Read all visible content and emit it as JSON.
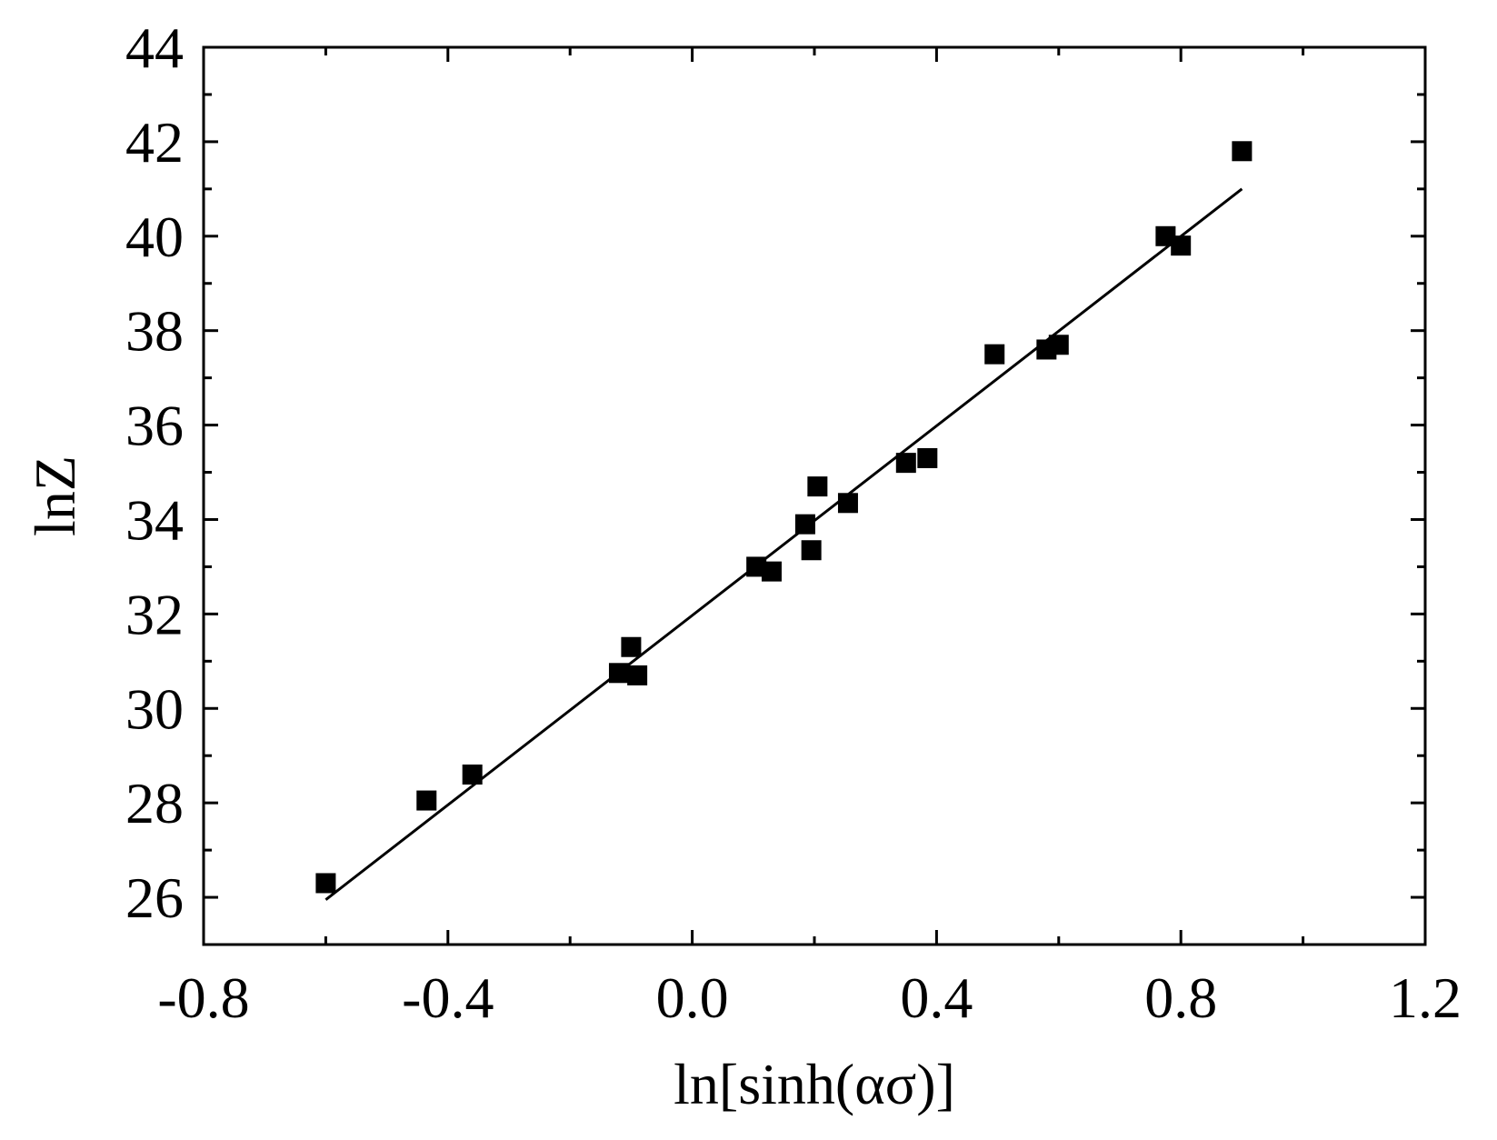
{
  "chart_data": {
    "type": "scatter",
    "title": "",
    "xlabel": "ln[sinh(ασ)]",
    "ylabel": "lnZ",
    "xlim": [
      -0.8,
      1.2
    ],
    "ylim": [
      25,
      44
    ],
    "x_ticks": [
      "-0.8",
      "-0.4",
      "0.0",
      "0.4",
      "0.8",
      "1.2"
    ],
    "y_ticks": [
      "26",
      "28",
      "30",
      "32",
      "34",
      "36",
      "38",
      "40",
      "42",
      "44"
    ],
    "grid": false,
    "legend": "none",
    "marker": "square",
    "color": "#000000",
    "series": [
      {
        "points": [
          {
            "x": -0.6,
            "y": 26.3
          },
          {
            "x": -0.435,
            "y": 28.05
          },
          {
            "x": -0.36,
            "y": 28.6
          },
          {
            "x": -0.12,
            "y": 30.75
          },
          {
            "x": -0.1,
            "y": 31.3
          },
          {
            "x": -0.09,
            "y": 30.7
          },
          {
            "x": 0.105,
            "y": 33.0
          },
          {
            "x": 0.13,
            "y": 32.9
          },
          {
            "x": 0.185,
            "y": 33.9
          },
          {
            "x": 0.195,
            "y": 33.35
          },
          {
            "x": 0.205,
            "y": 34.7
          },
          {
            "x": 0.255,
            "y": 34.35
          },
          {
            "x": 0.35,
            "y": 35.2
          },
          {
            "x": 0.385,
            "y": 35.3
          },
          {
            "x": 0.495,
            "y": 37.5
          },
          {
            "x": 0.58,
            "y": 37.6
          },
          {
            "x": 0.6,
            "y": 37.7
          },
          {
            "x": 0.775,
            "y": 40.0
          },
          {
            "x": 0.8,
            "y": 39.8
          },
          {
            "x": 0.9,
            "y": 41.8
          }
        ]
      }
    ],
    "fit_line": {
      "x": [
        -0.6,
        0.9
      ],
      "y": [
        25.95,
        41.0
      ]
    }
  }
}
